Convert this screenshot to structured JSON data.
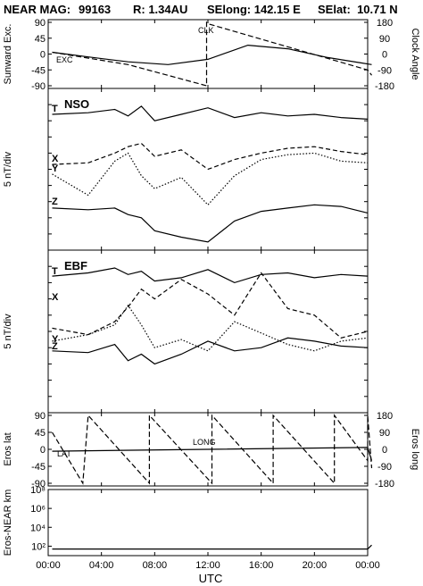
{
  "header": {
    "mission": "NEAR MAG:",
    "day": "99163",
    "range": "R: 1.34AU",
    "selong": "SElong: 142.15 E",
    "selat": "SElat:  10.71 N"
  },
  "chart_data": [
    {
      "panel": "exc-clock",
      "type": "line",
      "ylabel": "Sunward Exc.",
      "ylabel_right": "Clock Angle",
      "ylim": [
        -90,
        90
      ],
      "ylim_right": [
        -180,
        180
      ],
      "yticks": [
        "90",
        "45",
        "0",
        "-45",
        "-90"
      ],
      "yticks_right": [
        "180",
        "90",
        "0",
        "-90",
        "-180"
      ],
      "labels": [
        "EXC",
        "CLK"
      ],
      "series": [
        {
          "name": "EXC",
          "x": [
            0.3,
            3,
            6,
            9,
            12,
            15,
            18,
            21,
            23.5,
            24.3
          ],
          "values": [
            5,
            -8,
            -22,
            -30,
            -15,
            25,
            15,
            -10,
            -25,
            -30
          ]
        },
        {
          "name": "CLK",
          "x": [
            0.3,
            6,
            11.9,
            11.9,
            12.1,
            24,
            24.3
          ],
          "values": [
            10,
            -60,
            -180,
            180,
            170,
            -90,
            -120
          ]
        }
      ]
    },
    {
      "panel": "nso",
      "type": "line",
      "title": "NSO",
      "ylabel": "5 nT/div",
      "labels": [
        "T",
        "X",
        "Y",
        "Z"
      ],
      "series": [
        {
          "name": "T",
          "x": [
            0.3,
            3,
            5,
            6,
            7,
            8,
            10,
            12,
            14,
            16,
            18,
            20,
            22,
            24
          ],
          "values": [
            8.4,
            8.5,
            8.7,
            8.3,
            8.9,
            8.0,
            8.4,
            8.8,
            8.2,
            8.5,
            8.3,
            8.4,
            8.2,
            8.1
          ]
        },
        {
          "name": "X",
          "x": [
            0.3,
            3,
            5,
            6,
            7,
            8,
            10,
            12,
            14,
            16,
            18,
            20,
            22,
            24
          ],
          "values": [
            5.3,
            5.4,
            6.0,
            6.4,
            6.6,
            5.8,
            6.2,
            5.0,
            5.6,
            6.0,
            6.3,
            6.4,
            6.1,
            5.9
          ]
        },
        {
          "name": "Y",
          "x": [
            0.3,
            3,
            5,
            6,
            7,
            8,
            10,
            12,
            14,
            16,
            18,
            20,
            22,
            24
          ],
          "values": [
            4.7,
            3.4,
            5.5,
            6.0,
            4.6,
            3.8,
            4.5,
            2.8,
            4.6,
            5.6,
            5.9,
            6.0,
            5.5,
            5.4
          ]
        },
        {
          "name": "Z",
          "x": [
            0.3,
            3,
            5,
            6,
            7,
            8,
            10,
            12,
            14,
            16,
            18,
            20,
            22,
            24
          ],
          "values": [
            2.6,
            2.5,
            2.6,
            2.2,
            2.0,
            1.2,
            0.8,
            0.5,
            1.8,
            2.4,
            2.6,
            2.8,
            2.7,
            2.3
          ]
        }
      ]
    },
    {
      "panel": "ebf",
      "type": "line",
      "title": "EBF",
      "ylabel": "5 nT/div",
      "labels": [
        "T",
        "X",
        "Y",
        "Z"
      ],
      "series": [
        {
          "name": "T",
          "x": [
            0.3,
            3,
            5,
            6,
            7,
            8,
            10,
            12,
            14,
            16,
            18,
            20,
            22,
            24
          ],
          "values": [
            8.4,
            8.6,
            8.9,
            8.5,
            8.7,
            8.1,
            8.3,
            8.8,
            8.0,
            8.5,
            8.6,
            8.3,
            8.5,
            8.4
          ]
        },
        {
          "name": "X",
          "x": [
            0.3,
            3,
            5,
            6,
            7,
            8,
            10,
            12,
            14,
            16,
            18,
            20,
            22,
            24
          ],
          "values": [
            5.2,
            4.8,
            5.6,
            6.5,
            7.6,
            7.0,
            8.2,
            7.3,
            6.0,
            8.6,
            6.4,
            6.0,
            4.6,
            5.0
          ]
        },
        {
          "name": "Y",
          "x": [
            0.3,
            3,
            5,
            6,
            7,
            8,
            10,
            12,
            14,
            16,
            18,
            20,
            22,
            24
          ],
          "values": [
            4.4,
            4.8,
            5.4,
            6.6,
            5.4,
            4.0,
            4.5,
            3.8,
            5.6,
            4.9,
            4.2,
            3.8,
            4.4,
            4.6
          ]
        },
        {
          "name": "Z",
          "x": [
            0.3,
            3,
            5,
            6,
            7,
            8,
            10,
            12,
            14,
            16,
            18,
            20,
            22,
            24
          ],
          "values": [
            3.8,
            3.7,
            4.2,
            3.2,
            3.6,
            3.0,
            3.6,
            4.4,
            3.8,
            4.0,
            4.6,
            4.4,
            4.1,
            4.0
          ]
        }
      ]
    },
    {
      "panel": "eros-lat-long",
      "type": "line",
      "ylabel": "Eros lat",
      "ylabel_right": "Eros long",
      "ylim": [
        -90,
        90
      ],
      "ylim_right": [
        -180,
        180
      ],
      "yticks": [
        "90",
        "45",
        "0",
        "-45",
        "-90"
      ],
      "yticks_right": [
        "180",
        "90",
        "0",
        "-90",
        "-180"
      ],
      "labels": [
        "LAT",
        "LONG"
      ],
      "series": [
        {
          "name": "LAT",
          "x": [
            0.3,
            12,
            24,
            24.3
          ],
          "values": [
            -5,
            0,
            5,
            -30
          ]
        },
        {
          "name": "LONG",
          "x": [
            0.3,
            2.6,
            3.0,
            7.6,
            7.6,
            12.3,
            12.3,
            16.9,
            16.9,
            21.5,
            21.5,
            24.0,
            24.0,
            24.3
          ],
          "values": [
            90,
            -180,
            180,
            -180,
            180,
            -180,
            180,
            -180,
            180,
            -180,
            180,
            -60,
            180,
            -100
          ]
        }
      ]
    },
    {
      "panel": "eros-near-km",
      "type": "line",
      "ylabel": "Eros-NEAR km",
      "scale": "log",
      "ylim": [
        10,
        100000000
      ],
      "yticks": [
        "10⁸",
        "10⁶",
        "10⁴",
        "10²"
      ],
      "series": [
        {
          "name": "distance",
          "x": [
            0.3,
            24,
            24.3
          ],
          "values": [
            50,
            50,
            130
          ]
        }
      ]
    }
  ],
  "xaxis": {
    "label": "UTC",
    "ticks": [
      "00:00",
      "04:00",
      "08:00",
      "12:00",
      "16:00",
      "20:00",
      "00:00"
    ],
    "range": [
      0,
      24
    ]
  }
}
